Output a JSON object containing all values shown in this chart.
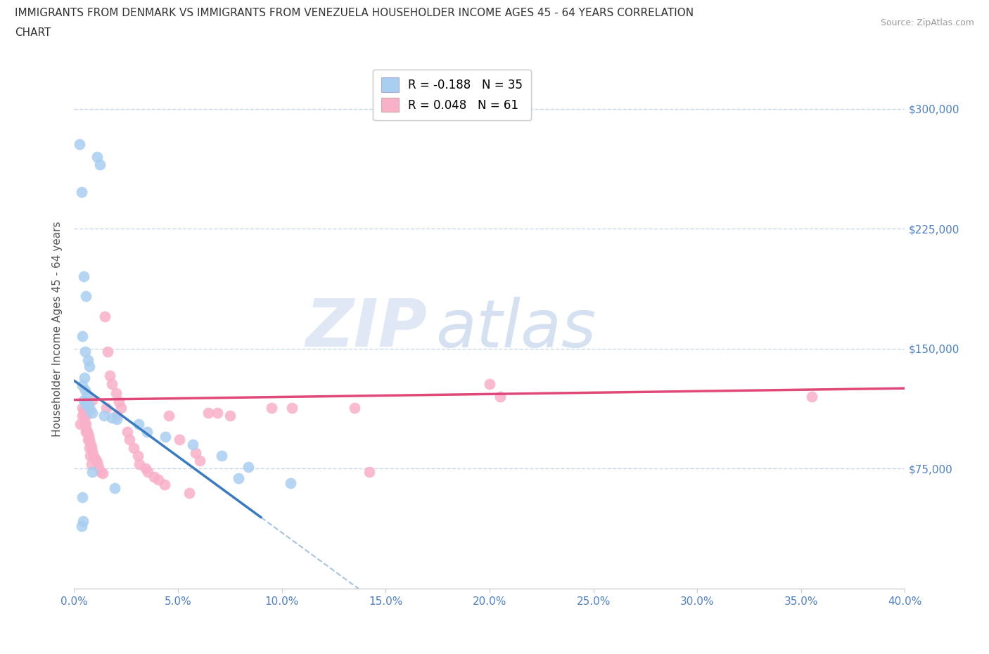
{
  "title_line1": "IMMIGRANTS FROM DENMARK VS IMMIGRANTS FROM VENEZUELA HOUSEHOLDER INCOME AGES 45 - 64 YEARS CORRELATION",
  "title_line2": "CHART",
  "source": "Source: ZipAtlas.com",
  "ylabel_label": "Householder Income Ages 45 - 64 years",
  "xlim": [
    0.0,
    40.0
  ],
  "ylim": [
    0,
    325000
  ],
  "denmark_color": "#a8cef0",
  "venezuela_color": "#f8b0c8",
  "denmark_line_color": "#3a7abf",
  "venezuela_line_color": "#e04878",
  "denmark_R": -0.188,
  "denmark_N": 35,
  "venezuela_R": 0.048,
  "venezuela_N": 61,
  "denmark_x": [
    0.25,
    1.1,
    1.25,
    0.35,
    0.55,
    0.45,
    0.38,
    0.52,
    0.65,
    0.72,
    0.48,
    0.38,
    0.52,
    0.62,
    0.45,
    0.55,
    0.68,
    0.78,
    0.88,
    1.45,
    1.8,
    2.05,
    3.1,
    3.5,
    4.4,
    5.7,
    7.1,
    0.42,
    0.38,
    8.4,
    0.85,
    0.35,
    7.9,
    10.4,
    1.95
  ],
  "denmark_y": [
    278000,
    270000,
    265000,
    248000,
    183000,
    195000,
    158000,
    148000,
    143000,
    139000,
    132000,
    127000,
    124000,
    121000,
    118000,
    115000,
    115000,
    112000,
    110000,
    108000,
    107000,
    106000,
    103000,
    98000,
    95000,
    90000,
    83000,
    42000,
    57000,
    76000,
    73000,
    39000,
    69000,
    66000,
    63000
  ],
  "venezuela_x": [
    0.28,
    0.45,
    0.55,
    0.6,
    0.68,
    0.72,
    0.78,
    0.82,
    0.88,
    0.95,
    1.05,
    1.1,
    1.18,
    1.28,
    1.38,
    1.48,
    1.62,
    1.72,
    1.82,
    2.0,
    2.15,
    2.25,
    2.55,
    2.65,
    2.85,
    3.05,
    3.15,
    3.45,
    3.55,
    3.85,
    4.05,
    4.35,
    4.55,
    5.05,
    5.85,
    6.05,
    6.45,
    6.9,
    7.5,
    9.5,
    10.5,
    13.5,
    20.0,
    20.5,
    35.5,
    0.38,
    0.48,
    0.55,
    0.62,
    0.65,
    0.72,
    0.75,
    0.82,
    0.88,
    1.55,
    2.05,
    5.55,
    14.2,
    0.38,
    0.48,
    0.55
  ],
  "venezuela_y": [
    103000,
    111000,
    108000,
    99000,
    96000,
    93000,
    91000,
    89000,
    86000,
    83000,
    81000,
    79000,
    76000,
    73000,
    72000,
    170000,
    148000,
    133000,
    128000,
    122000,
    117000,
    113000,
    98000,
    93000,
    88000,
    83000,
    78000,
    75000,
    73000,
    70000,
    68000,
    65000,
    108000,
    93000,
    85000,
    80000,
    110000,
    110000,
    108000,
    113000,
    113000,
    113000,
    128000,
    120000,
    120000,
    113000,
    108000,
    103000,
    98000,
    93000,
    88000,
    83000,
    78000,
    118000,
    113000,
    108000,
    60000,
    73000,
    108000,
    103000,
    98000
  ],
  "watermark_zip": "ZIP",
  "watermark_atlas": "atlas",
  "background_color": "#ffffff",
  "grid_color": "#c8d8ec",
  "tick_color": "#5080c0",
  "ytick_labels": [
    "$75,000",
    "$150,000",
    "$225,000",
    "$300,000"
  ],
  "ytick_vals": [
    75000,
    150000,
    225000,
    300000
  ],
  "xtick_vals": [
    0,
    5,
    10,
    15,
    20,
    25,
    30,
    35,
    40
  ],
  "dk_solid_end": 9.0,
  "dk_intercept": 130000,
  "dk_slope": -9500,
  "vz_intercept": 118000,
  "vz_slope": 180
}
